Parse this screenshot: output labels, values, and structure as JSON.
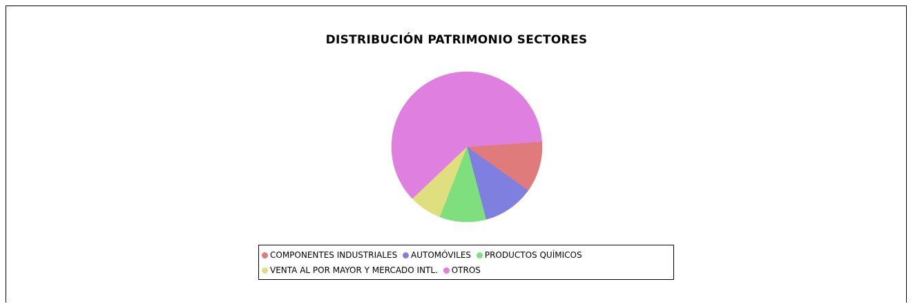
{
  "chart_data": {
    "type": "pie",
    "title": "DISTRIBUCIÓN PATRIMONIO SECTORES",
    "categories": [
      "COMPONENTES INDUSTRIALES",
      "AUTOMÓVILES",
      "PRODUCTOS QUÍMICOS",
      "VENTA AL POR MAYOR Y MERCADO INTL.",
      "OTROS"
    ],
    "values": [
      11,
      11,
      10,
      7,
      61
    ],
    "colors": [
      "#e07b7b",
      "#7f7fe0",
      "#7fdf7f",
      "#e0df7f",
      "#df7fdf"
    ],
    "legend": "bottom"
  }
}
